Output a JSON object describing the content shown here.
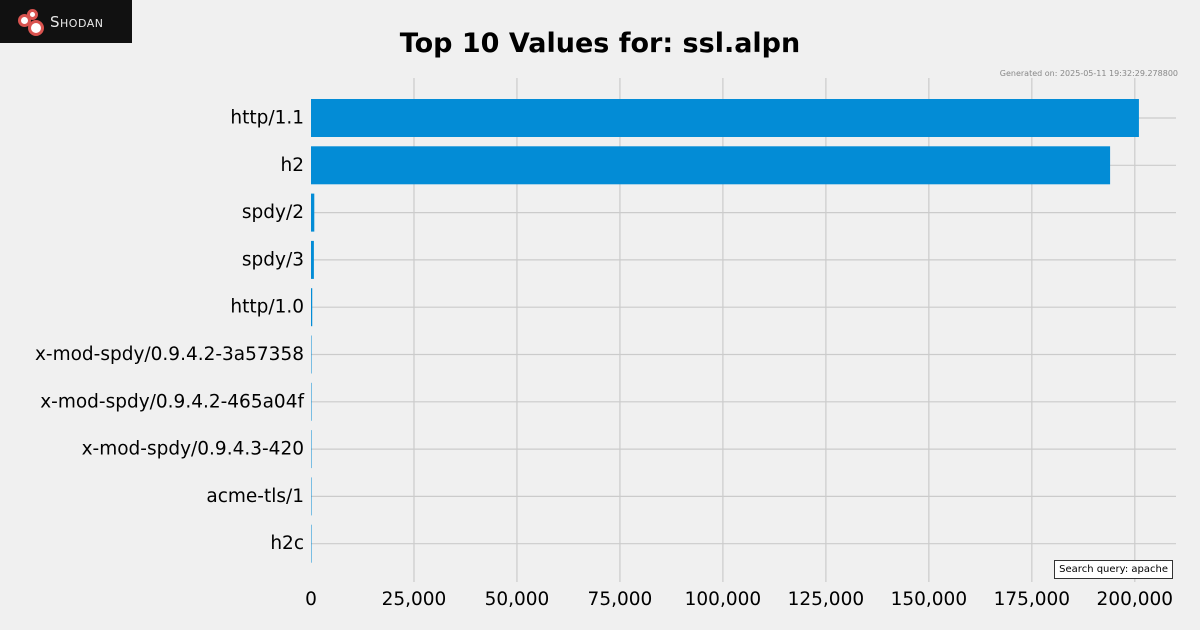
{
  "brand": {
    "name": "Shodan",
    "colors": {
      "logo_bg": "#111111",
      "logo_ring": "#d9534f"
    }
  },
  "generated_text": "Generated on: 2025-05-11 19:32:29.278800",
  "query_text": "Search query: apache",
  "colors": {
    "bar": "#038cd6",
    "background": "#f0f0f0",
    "grid": "#cbcbcb"
  },
  "chart_data": {
    "type": "bar",
    "orientation": "horizontal",
    "title": "Top 10 Values for: ssl.alpn",
    "categories": [
      "http/1.1",
      "h2",
      "spdy/2",
      "spdy/3",
      "http/1.0",
      "x-mod-spdy/0.9.4.2-3a57358",
      "x-mod-spdy/0.9.4.2-465a04f",
      "x-mod-spdy/0.9.4.3-420",
      "acme-tls/1",
      "h2c"
    ],
    "values": [
      201000,
      194000,
      800,
      700,
      300,
      10,
      8,
      6,
      4,
      2
    ],
    "xlim": [
      0,
      210000
    ],
    "xticks": [
      0,
      25000,
      50000,
      75000,
      100000,
      125000,
      150000,
      175000,
      200000
    ],
    "xtick_labels": [
      "0",
      "25,000",
      "50,000",
      "75,000",
      "100,000",
      "125,000",
      "150,000",
      "175,000",
      "200,000"
    ],
    "grid": true,
    "legend": "none"
  }
}
